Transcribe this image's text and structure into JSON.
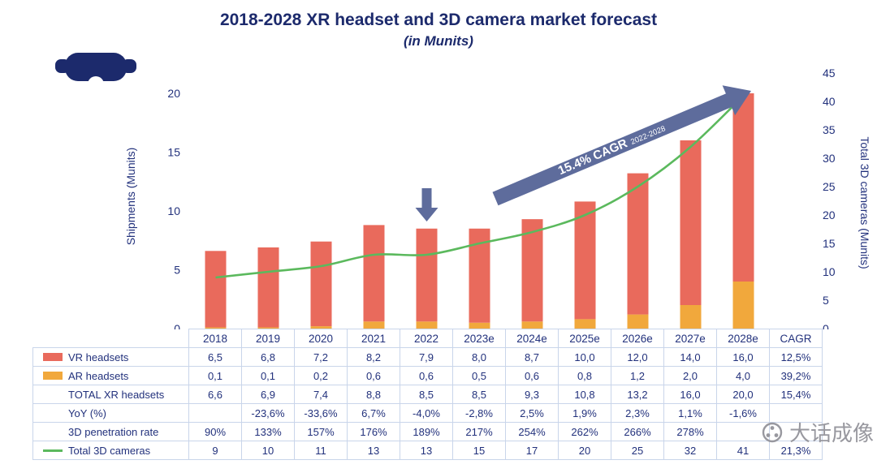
{
  "title": "2018-2028 XR headset and 3D camera market forecast",
  "subtitle": "(in Munits)",
  "icons": {
    "headset": "vr-headset-icon",
    "watermark_logo": "aperture-icon"
  },
  "colors": {
    "navy": "#1c2a6c",
    "vr_red": "#e96a5c",
    "ar_orange": "#f1a83c",
    "cameras_green": "#5bb95d",
    "arrow_slate": "#5e6c9c",
    "grid_border": "#c9d5ea",
    "watermark_gray": "#98989f"
  },
  "chart_data": {
    "type": "combo_bar_line",
    "categories": [
      "2018",
      "2019",
      "2020",
      "2021",
      "2022",
      "2023e",
      "2024e",
      "2025e",
      "2026e",
      "2027e",
      "2028e"
    ],
    "series": [
      {
        "name": "VR headsets",
        "chart_type": "bar",
        "stack_order": "top",
        "color": "#e96a5c",
        "axis": "left",
        "values": [
          6.5,
          6.8,
          7.2,
          8.2,
          7.9,
          8.0,
          8.7,
          10.0,
          12.0,
          14.0,
          16.0
        ]
      },
      {
        "name": "AR headsets",
        "chart_type": "bar",
        "stack_order": "bottom",
        "color": "#f1a83c",
        "axis": "left",
        "values": [
          0.1,
          0.1,
          0.2,
          0.6,
          0.6,
          0.5,
          0.6,
          0.8,
          1.2,
          2.0,
          4.0
        ]
      },
      {
        "name": "Total 3D cameras",
        "chart_type": "line",
        "axis": "right",
        "color": "#5bb95d",
        "values": [
          9,
          10,
          11,
          13,
          13,
          15,
          17,
          20,
          25,
          32,
          41
        ]
      }
    ],
    "left_axis": {
      "label": "Shipments (Munits)",
      "min": 0,
      "max": 20,
      "ticks": [
        0,
        5,
        10,
        15,
        20
      ]
    },
    "right_axis": {
      "label": "Total 3D cameras (Munits)",
      "min": 0,
      "max": 45,
      "ticks": [
        0,
        5,
        10,
        15,
        20,
        25,
        30,
        35,
        40,
        45
      ]
    },
    "annotation": {
      "text": "15.4% CAGR",
      "period": "2022-2028"
    },
    "grid": false,
    "legend_position": "table-left"
  },
  "table": {
    "columns": [
      "2018",
      "2019",
      "2020",
      "2021",
      "2022",
      "2023e",
      "2024e",
      "2025e",
      "2026e",
      "2027e",
      "2028e",
      "CAGR"
    ],
    "rows": [
      {
        "label": "VR headsets",
        "swatch": "bar-red",
        "values": [
          "6,5",
          "6,8",
          "7,2",
          "8,2",
          "7,9",
          "8,0",
          "8,7",
          "10,0",
          "12,0",
          "14,0",
          "16,0",
          "12,5%"
        ]
      },
      {
        "label": "AR headsets",
        "swatch": "bar-orange",
        "values": [
          "0,1",
          "0,1",
          "0,2",
          "0,6",
          "0,6",
          "0,5",
          "0,6",
          "0,8",
          "1,2",
          "2,0",
          "4,0",
          "39,2%"
        ]
      },
      {
        "label": "TOTAL XR headsets",
        "swatch": null,
        "values": [
          "6,6",
          "6,9",
          "7,4",
          "8,8",
          "8,5",
          "8,5",
          "9,3",
          "10,8",
          "13,2",
          "16,0",
          "20,0",
          "15,4%"
        ]
      },
      {
        "label": "YoY (%)",
        "swatch": null,
        "values": [
          "",
          "-23,6%",
          "-33,6%",
          "6,7%",
          "-4,0%",
          "-2,8%",
          "2,5%",
          "1,9%",
          "2,3%",
          "1,1%",
          "-1,6%",
          ""
        ]
      },
      {
        "label": "3D penetration rate",
        "swatch": null,
        "values": [
          "90%",
          "133%",
          "157%",
          "176%",
          "189%",
          "217%",
          "254%",
          "262%",
          "266%",
          "278%",
          "",
          ""
        ]
      },
      {
        "label": "Total 3D cameras",
        "swatch": "line-green",
        "values": [
          "9",
          "10",
          "11",
          "13",
          "13",
          "15",
          "17",
          "20",
          "25",
          "32",
          "41",
          "21,3%"
        ]
      }
    ]
  },
  "watermark": {
    "text": "大话成像"
  }
}
